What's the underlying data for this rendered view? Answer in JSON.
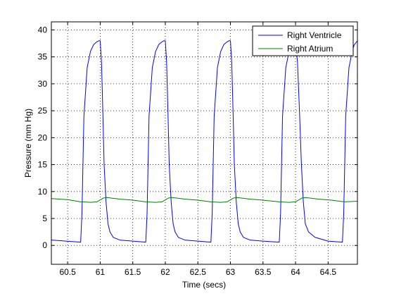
{
  "chart_data": {
    "type": "line",
    "xlabel": "Time (secs)",
    "ylabel": "Pressure (mm Hg)",
    "xlim": [
      60.25,
      64.95
    ],
    "ylim": [
      -3.5,
      41.5
    ],
    "xticks": [
      60.5,
      61,
      61.5,
      62,
      62.5,
      63,
      63.5,
      64,
      64.5
    ],
    "xtick_labels": [
      "60.5",
      "61",
      "61.5",
      "62",
      "62.5",
      "63",
      "63.5",
      "64",
      "64.5"
    ],
    "yticks": [
      0,
      5,
      10,
      15,
      20,
      25,
      30,
      35,
      40
    ],
    "ytick_labels": [
      "0",
      "5",
      "10",
      "15",
      "20",
      "25",
      "30",
      "35",
      "40"
    ],
    "grid": true,
    "legend_position": "top-right",
    "series": [
      {
        "name": "Right Ventricle",
        "color": "#0000ff",
        "x": [
          60.25,
          60.7,
          60.72,
          60.75,
          60.8,
          60.85,
          60.9,
          60.95,
          60.98,
          61.0,
          61.02,
          61.04,
          61.06,
          61.09,
          61.12,
          61.15,
          61.2,
          61.3,
          61.5,
          61.7,
          61.72,
          61.75,
          61.8,
          61.85,
          61.9,
          61.95,
          61.98,
          62.0,
          62.02,
          62.04,
          62.06,
          62.09,
          62.12,
          62.15,
          62.2,
          62.3,
          62.5,
          62.7,
          62.72,
          62.75,
          62.8,
          62.85,
          62.9,
          62.95,
          62.98,
          63.0,
          63.02,
          63.04,
          63.06,
          63.09,
          63.12,
          63.15,
          63.2,
          63.3,
          63.5,
          63.75,
          63.77,
          63.8,
          63.85,
          63.9,
          63.95,
          63.98,
          64.0,
          64.03,
          64.06,
          64.09,
          64.12,
          64.15,
          64.2,
          64.3,
          64.5,
          64.72,
          64.74,
          64.77,
          64.82,
          64.87,
          64.9,
          64.95
        ],
        "y": [
          1,
          0.6,
          6,
          24,
          33,
          36,
          37.3,
          37.8,
          38,
          38,
          34,
          25,
          15,
          8,
          4,
          2.5,
          1.5,
          1,
          0.8,
          0.6,
          6,
          24,
          33,
          36,
          37.3,
          37.8,
          38,
          38,
          34,
          25,
          15,
          8,
          4,
          2.5,
          1.5,
          1,
          0.8,
          0.6,
          6,
          24,
          33,
          36,
          37.3,
          37.8,
          38,
          38,
          34,
          25,
          15,
          8,
          4,
          2.5,
          1.5,
          1,
          0.8,
          0.6,
          6,
          24,
          33,
          36,
          37.3,
          38,
          38,
          34,
          25,
          15,
          8,
          4,
          2.5,
          1.5,
          0.8,
          0.6,
          6,
          24,
          33,
          36,
          37.2,
          38
        ]
      },
      {
        "name": "Right Atrium",
        "color": "#008000",
        "x": [
          60.25,
          60.5,
          60.7,
          60.85,
          60.95,
          61.05,
          61.1,
          61.3,
          61.5,
          61.7,
          61.85,
          61.95,
          62.05,
          62.1,
          62.3,
          62.5,
          62.7,
          62.85,
          62.95,
          63.05,
          63.1,
          63.3,
          63.5,
          63.75,
          63.9,
          64.0,
          64.1,
          64.15,
          64.35,
          64.55,
          64.75,
          64.95
        ],
        "y": [
          8.7,
          8.5,
          8.1,
          8.0,
          8.1,
          8.8,
          8.9,
          8.6,
          8.4,
          8.1,
          8.0,
          8.1,
          8.8,
          8.9,
          8.6,
          8.4,
          8.1,
          8.0,
          8.1,
          8.8,
          8.9,
          8.6,
          8.4,
          8.1,
          8.0,
          8.1,
          8.8,
          8.9,
          8.6,
          8.4,
          8.1,
          8.2
        ]
      }
    ]
  }
}
